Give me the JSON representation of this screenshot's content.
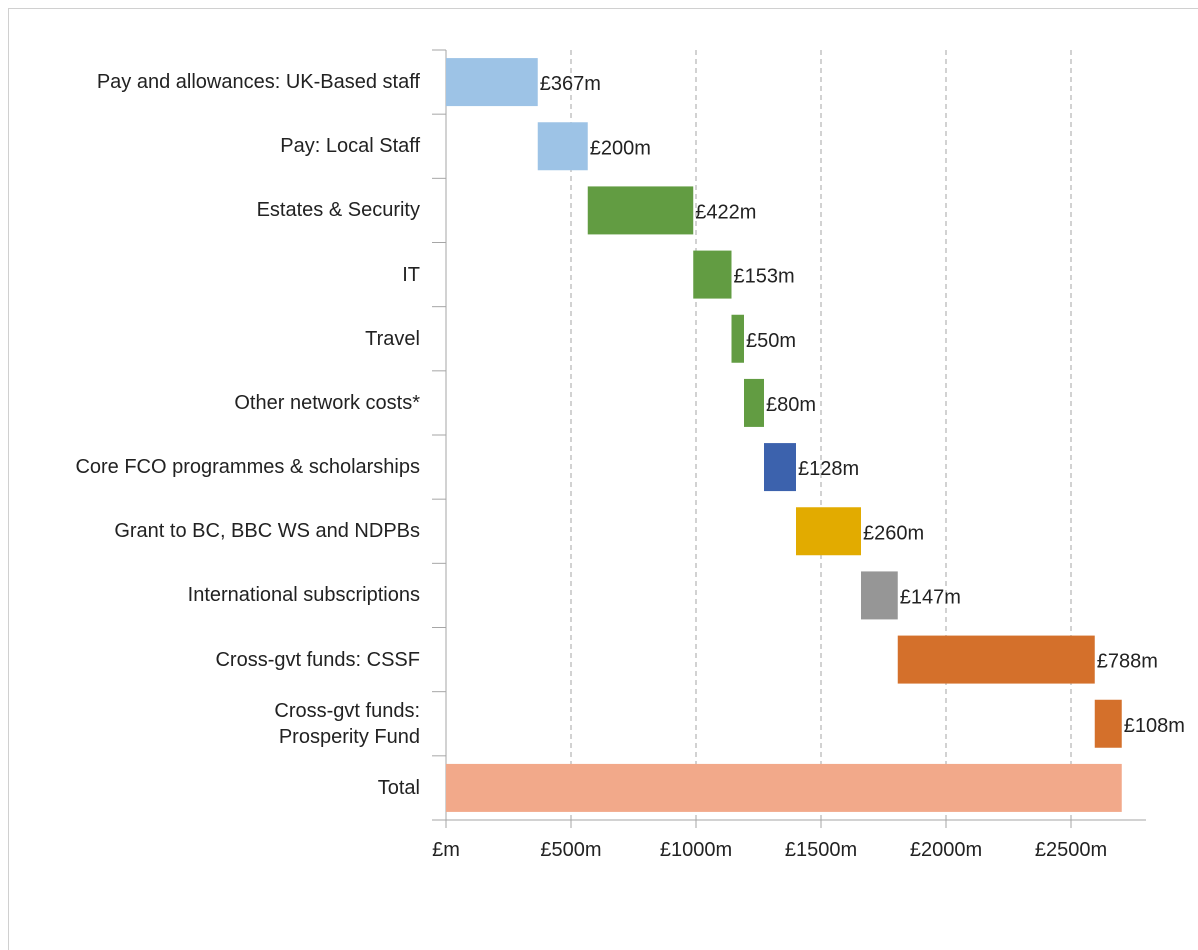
{
  "chart_data": {
    "type": "waterfall",
    "orientation": "horizontal",
    "categories": [
      "Pay and allowances: UK-Based staff",
      "Pay: Local Staff",
      "Estates & Security",
      "IT",
      "Travel",
      "Other network costs*",
      "Core FCO programmes & scholarships",
      "Grant to BC, BBC WS and NDPBs",
      "International subscriptions",
      "Cross-gvt funds: CSSF",
      "Cross-gvt funds:\nProsperity Fund",
      "Total"
    ],
    "values": [
      367,
      200,
      422,
      153,
      50,
      80,
      128,
      260,
      147,
      788,
      108,
      2703
    ],
    "value_labels": [
      "£367m",
      "£200m",
      "£422m",
      "£153m",
      "£50m",
      "£80m",
      "£128m",
      "£260m",
      "£147m",
      "£788m",
      "£108m",
      null
    ],
    "colors": [
      "#9dc3e6",
      "#9dc3e6",
      "#629c42",
      "#629c42",
      "#629c42",
      "#629c42",
      "#3c62ad",
      "#e2ab00",
      "#969696",
      "#d4702b",
      "#d4702b",
      "#f2a98a"
    ],
    "xlim": [
      0,
      2800
    ],
    "xticks": [
      {
        "value": 0,
        "label": "£m"
      },
      {
        "value": 500,
        "label": "£500m"
      },
      {
        "value": 1000,
        "label": "£1000m"
      },
      {
        "value": 1500,
        "label": "£1500m"
      },
      {
        "value": 2000,
        "label": "£2000m"
      },
      {
        "value": 2500,
        "label": "£2500m"
      }
    ],
    "grid": true
  }
}
